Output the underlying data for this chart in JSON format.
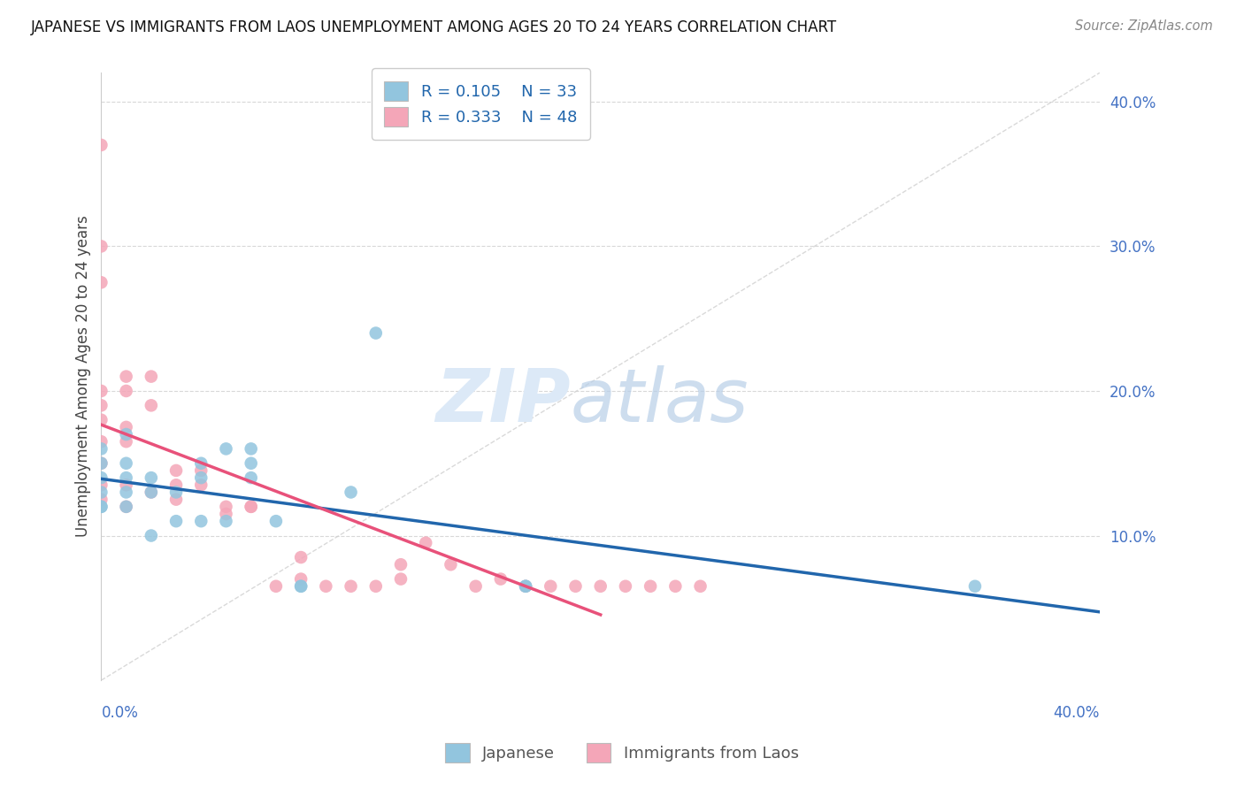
{
  "title": "JAPANESE VS IMMIGRANTS FROM LAOS UNEMPLOYMENT AMONG AGES 20 TO 24 YEARS CORRELATION CHART",
  "source": "Source: ZipAtlas.com",
  "ylabel": "Unemployment Among Ages 20 to 24 years",
  "xlim": [
    0.0,
    0.4
  ],
  "ylim": [
    0.0,
    0.42
  ],
  "yticks": [
    0.1,
    0.2,
    0.3,
    0.4
  ],
  "ytick_labels": [
    "10.0%",
    "20.0%",
    "30.0%",
    "40.0%"
  ],
  "xtick_left": "0.0%",
  "xtick_right": "40.0%",
  "japanese_color": "#92c5de",
  "laos_color": "#f4a6b8",
  "japanese_line_color": "#2166ac",
  "laos_line_color": "#e8517a",
  "diagonal_color": "#d0d0d0",
  "watermark_zip": "ZIP",
  "watermark_atlas": "atlas",
  "japanese_x": [
    0.0,
    0.0,
    0.0,
    0.0,
    0.0,
    0.0,
    0.01,
    0.01,
    0.01,
    0.01,
    0.01,
    0.02,
    0.02,
    0.02,
    0.03,
    0.03,
    0.04,
    0.04,
    0.04,
    0.05,
    0.05,
    0.06,
    0.06,
    0.06,
    0.07,
    0.08,
    0.08,
    0.1,
    0.11,
    0.17,
    0.17,
    0.35
  ],
  "japanese_y": [
    0.12,
    0.12,
    0.13,
    0.14,
    0.15,
    0.16,
    0.12,
    0.13,
    0.14,
    0.15,
    0.17,
    0.1,
    0.13,
    0.14,
    0.11,
    0.13,
    0.11,
    0.14,
    0.15,
    0.11,
    0.16,
    0.14,
    0.15,
    0.16,
    0.11,
    0.065,
    0.065,
    0.13,
    0.24,
    0.065,
    0.065,
    0.065
  ],
  "laos_x": [
    0.0,
    0.0,
    0.0,
    0.0,
    0.0,
    0.0,
    0.0,
    0.0,
    0.0,
    0.0,
    0.01,
    0.01,
    0.01,
    0.01,
    0.01,
    0.01,
    0.02,
    0.02,
    0.02,
    0.03,
    0.03,
    0.03,
    0.04,
    0.04,
    0.05,
    0.05,
    0.06,
    0.06,
    0.07,
    0.08,
    0.08,
    0.09,
    0.1,
    0.11,
    0.12,
    0.12,
    0.13,
    0.14,
    0.15,
    0.16,
    0.17,
    0.18,
    0.19,
    0.2,
    0.21,
    0.22,
    0.23,
    0.24
  ],
  "laos_y": [
    0.37,
    0.3,
    0.275,
    0.2,
    0.19,
    0.18,
    0.165,
    0.15,
    0.135,
    0.125,
    0.21,
    0.2,
    0.175,
    0.165,
    0.135,
    0.12,
    0.21,
    0.19,
    0.13,
    0.145,
    0.135,
    0.125,
    0.145,
    0.135,
    0.12,
    0.115,
    0.12,
    0.12,
    0.065,
    0.085,
    0.07,
    0.065,
    0.065,
    0.065,
    0.08,
    0.07,
    0.095,
    0.08,
    0.065,
    0.07,
    0.065,
    0.065,
    0.065,
    0.065,
    0.065,
    0.065,
    0.065,
    0.065
  ]
}
